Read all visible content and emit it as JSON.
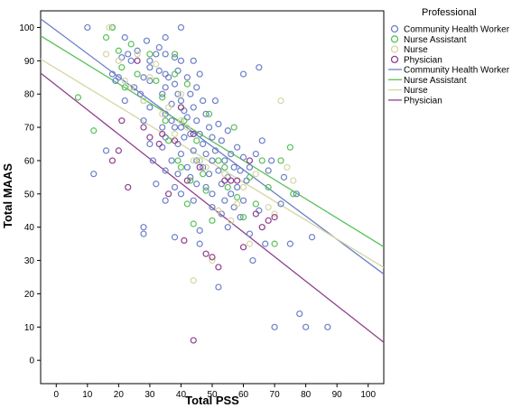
{
  "chart_data": {
    "type": "scatter",
    "xlabel": "Total PSS",
    "ylabel": "Total MAAS",
    "xlim": [
      -5,
      105
    ],
    "ylim": [
      -7,
      105
    ],
    "x_ticks": [
      0,
      10,
      20,
      30,
      40,
      50,
      60,
      70,
      80,
      90,
      100
    ],
    "y_ticks": [
      0,
      10,
      20,
      30,
      40,
      50,
      60,
      70,
      80,
      90,
      100
    ],
    "grid": false,
    "legend": {
      "title": "Professional",
      "position": "top-right"
    },
    "series": [
      {
        "name": "Community Health Worker",
        "color": "#6b7fc7",
        "points": [
          [
            10,
            100
          ],
          [
            12,
            56
          ],
          [
            16,
            63
          ],
          [
            18,
            100
          ],
          [
            18,
            86
          ],
          [
            19,
            84
          ],
          [
            20,
            85
          ],
          [
            21,
            91
          ],
          [
            22,
            97
          ],
          [
            23,
            92
          ],
          [
            24,
            90
          ],
          [
            22,
            78
          ],
          [
            25,
            82
          ],
          [
            26,
            93
          ],
          [
            27,
            80
          ],
          [
            28,
            85
          ],
          [
            28,
            72
          ],
          [
            28,
            38
          ],
          [
            28,
            40
          ],
          [
            29,
            96
          ],
          [
            30,
            90
          ],
          [
            30,
            88
          ],
          [
            30,
            84
          ],
          [
            30,
            76
          ],
          [
            30,
            65
          ],
          [
            31,
            60
          ],
          [
            32,
            53
          ],
          [
            32,
            92
          ],
          [
            33,
            94
          ],
          [
            33,
            87
          ],
          [
            34,
            80
          ],
          [
            34,
            70
          ],
          [
            34,
            64
          ],
          [
            35,
            97
          ],
          [
            35,
            92
          ],
          [
            35,
            86
          ],
          [
            35,
            82
          ],
          [
            35,
            74
          ],
          [
            35,
            67
          ],
          [
            35,
            57
          ],
          [
            35,
            48
          ],
          [
            36,
            85
          ],
          [
            37,
            77
          ],
          [
            37,
            72
          ],
          [
            37,
            60
          ],
          [
            38,
            91
          ],
          [
            38,
            83
          ],
          [
            38,
            70
          ],
          [
            38,
            52
          ],
          [
            38,
            37
          ],
          [
            39,
            87
          ],
          [
            39,
            80
          ],
          [
            39,
            65
          ],
          [
            39,
            56
          ],
          [
            40,
            100
          ],
          [
            40,
            90
          ],
          [
            40,
            78
          ],
          [
            40,
            70
          ],
          [
            40,
            62
          ],
          [
            40,
            50
          ],
          [
            41,
            75
          ],
          [
            41,
            67
          ],
          [
            42,
            85
          ],
          [
            42,
            73
          ],
          [
            42,
            58
          ],
          [
            43,
            80
          ],
          [
            43,
            68
          ],
          [
            43,
            55
          ],
          [
            44,
            90
          ],
          [
            44,
            76
          ],
          [
            44,
            63
          ],
          [
            44,
            48
          ],
          [
            45,
            82
          ],
          [
            45,
            72
          ],
          [
            45,
            60
          ],
          [
            45,
            53
          ],
          [
            46,
            86
          ],
          [
            46,
            68
          ],
          [
            46,
            39
          ],
          [
            46,
            35
          ],
          [
            47,
            78
          ],
          [
            47,
            65
          ],
          [
            47,
            58
          ],
          [
            48,
            74
          ],
          [
            48,
            62
          ],
          [
            48,
            52
          ],
          [
            49,
            70
          ],
          [
            49,
            56
          ],
          [
            50,
            67
          ],
          [
            50,
            60
          ],
          [
            50,
            50
          ],
          [
            50,
            46
          ],
          [
            51,
            78
          ],
          [
            51,
            63
          ],
          [
            52,
            71
          ],
          [
            52,
            57
          ],
          [
            52,
            22
          ],
          [
            53,
            66
          ],
          [
            53,
            53
          ],
          [
            53,
            44
          ],
          [
            54,
            60
          ],
          [
            54,
            48
          ],
          [
            55,
            69
          ],
          [
            55,
            55
          ],
          [
            55,
            40
          ],
          [
            56,
            62
          ],
          [
            56,
            50
          ],
          [
            57,
            58
          ],
          [
            57,
            46
          ],
          [
            58,
            64
          ],
          [
            58,
            52
          ],
          [
            59,
            57
          ],
          [
            59,
            43
          ],
          [
            60,
            61
          ],
          [
            60,
            86
          ],
          [
            60,
            48
          ],
          [
            61,
            54
          ],
          [
            62,
            38
          ],
          [
            62,
            58
          ],
          [
            63,
            30
          ],
          [
            64,
            62
          ],
          [
            65,
            88
          ],
          [
            65,
            45
          ],
          [
            66,
            66
          ],
          [
            67,
            35
          ],
          [
            68,
            57
          ],
          [
            69,
            60
          ],
          [
            70,
            10
          ],
          [
            72,
            47
          ],
          [
            73,
            55
          ],
          [
            75,
            35
          ],
          [
            77,
            50
          ],
          [
            78,
            14
          ],
          [
            80,
            10
          ],
          [
            82,
            37
          ],
          [
            87,
            10
          ]
        ]
      },
      {
        "name": "Nurse Assistant",
        "color": "#57c157",
        "points": [
          [
            7,
            79
          ],
          [
            12,
            69
          ],
          [
            16,
            97
          ],
          [
            18,
            100
          ],
          [
            20,
            93
          ],
          [
            21,
            88
          ],
          [
            22,
            82
          ],
          [
            24,
            95
          ],
          [
            26,
            86
          ],
          [
            28,
            78
          ],
          [
            30,
            92
          ],
          [
            32,
            84
          ],
          [
            34,
            79
          ],
          [
            35,
            72
          ],
          [
            36,
            66
          ],
          [
            38,
            92
          ],
          [
            38,
            86
          ],
          [
            39,
            60
          ],
          [
            40,
            58
          ],
          [
            40,
            76
          ],
          [
            41,
            72
          ],
          [
            42,
            83
          ],
          [
            42,
            47
          ],
          [
            43,
            54
          ],
          [
            44,
            41
          ],
          [
            45,
            66
          ],
          [
            46,
            60
          ],
          [
            47,
            56
          ],
          [
            48,
            51
          ],
          [
            49,
            74
          ],
          [
            50,
            42
          ],
          [
            52,
            60
          ],
          [
            54,
            58
          ],
          [
            55,
            52
          ],
          [
            57,
            70
          ],
          [
            58,
            49
          ],
          [
            60,
            43
          ],
          [
            62,
            55
          ],
          [
            64,
            47
          ],
          [
            66,
            60
          ],
          [
            68,
            52
          ],
          [
            70,
            35
          ],
          [
            72,
            60
          ],
          [
            75,
            64
          ],
          [
            76,
            50
          ]
        ]
      },
      {
        "name": "Nurse",
        "color": "#d6d6a3",
        "points": [
          [
            16,
            92
          ],
          [
            17,
            100
          ],
          [
            20,
            90
          ],
          [
            22,
            84
          ],
          [
            24,
            82
          ],
          [
            26,
            92
          ],
          [
            28,
            78
          ],
          [
            30,
            85
          ],
          [
            32,
            89
          ],
          [
            34,
            74
          ],
          [
            36,
            76
          ],
          [
            38,
            68
          ],
          [
            40,
            80
          ],
          [
            40,
            72
          ],
          [
            42,
            70
          ],
          [
            44,
            60
          ],
          [
            44,
            24
          ],
          [
            46,
            60
          ],
          [
            48,
            58
          ],
          [
            50,
            30
          ],
          [
            52,
            45
          ],
          [
            54,
            56
          ],
          [
            56,
            42
          ],
          [
            58,
            47
          ],
          [
            60,
            52
          ],
          [
            62,
            35
          ],
          [
            64,
            56
          ],
          [
            66,
            40
          ],
          [
            68,
            46
          ],
          [
            70,
            44
          ],
          [
            72,
            78
          ],
          [
            74,
            58
          ],
          [
            76,
            54
          ]
        ]
      },
      {
        "name": "Physician",
        "color": "#8e3f8e",
        "points": [
          [
            18,
            60
          ],
          [
            20,
            63
          ],
          [
            21,
            72
          ],
          [
            23,
            52
          ],
          [
            26,
            90
          ],
          [
            28,
            70
          ],
          [
            30,
            67
          ],
          [
            33,
            65
          ],
          [
            34,
            68
          ],
          [
            36,
            50
          ],
          [
            38,
            66
          ],
          [
            40,
            76
          ],
          [
            41,
            36
          ],
          [
            42,
            54
          ],
          [
            44,
            68
          ],
          [
            44,
            6
          ],
          [
            46,
            58
          ],
          [
            48,
            32
          ],
          [
            50,
            31
          ],
          [
            52,
            28
          ],
          [
            54,
            54
          ],
          [
            56,
            54
          ],
          [
            58,
            54
          ],
          [
            60,
            34
          ],
          [
            62,
            60
          ],
          [
            64,
            44
          ],
          [
            66,
            40
          ],
          [
            68,
            42
          ],
          [
            70,
            43
          ]
        ]
      }
    ],
    "fit_lines": [
      {
        "name": "Community Health Worker",
        "color": "#6b7fc7",
        "y_at_xmin": 102.6,
        "y_at_xmax": 25.9
      },
      {
        "name": "Nurse Assistant",
        "color": "#57c157",
        "y_at_xmin": 97.5,
        "y_at_xmax": 34.1
      },
      {
        "name": "Nurse",
        "color": "#d6d6a3",
        "y_at_xmin": 90.5,
        "y_at_xmax": 27.9
      },
      {
        "name": "Physician",
        "color": "#8e3f8e",
        "y_at_xmin": 86.3,
        "y_at_xmax": 5.4
      }
    ]
  }
}
